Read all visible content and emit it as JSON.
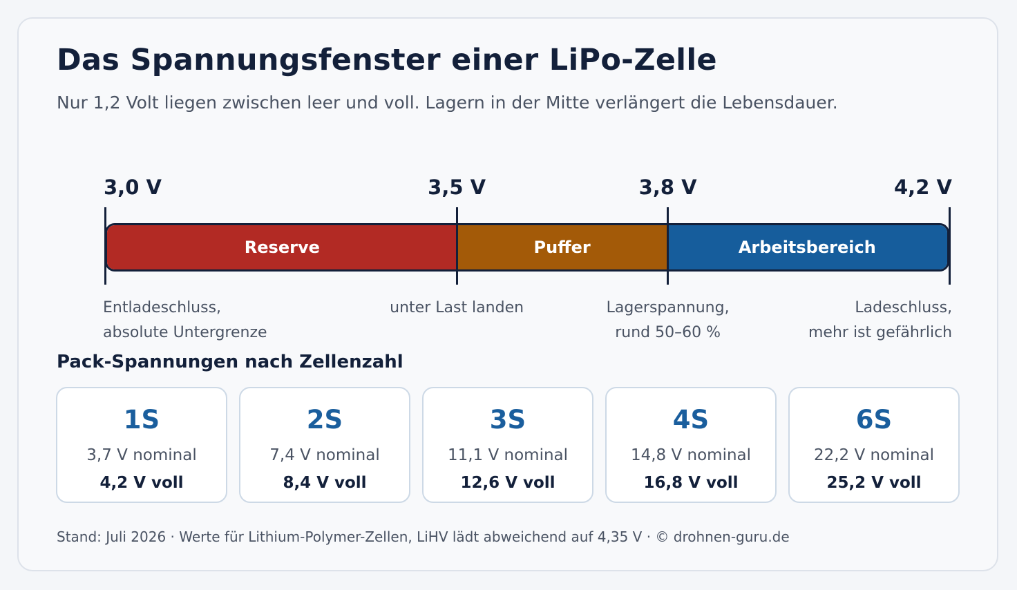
{
  "header": {
    "title": "Das Spannungsfenster einer LiPo-Zelle",
    "subtitle": "Nur 1,2 Volt liegen zwischen leer und voll. Lagern in der Mitte verlängert die Lebensdauer."
  },
  "scale": {
    "markers": [
      {
        "value": 3.0,
        "label": "3,0 V"
      },
      {
        "value": 3.5,
        "label": "3,5 V"
      },
      {
        "value": 3.8,
        "label": "3,8 V"
      },
      {
        "value": 4.2,
        "label": "4,2 V"
      }
    ],
    "segments": [
      {
        "label": "Reserve",
        "from": 3.0,
        "to": 3.5,
        "color": "#b22a24"
      },
      {
        "label": "Puffer",
        "from": 3.5,
        "to": 3.8,
        "color": "#a35a08"
      },
      {
        "label": "Arbeitsbereich",
        "from": 3.8,
        "to": 4.2,
        "color": "#165d9c"
      }
    ],
    "descriptions": [
      {
        "line1": "Entladeschluss,",
        "line2": "absolute Untergrenze"
      },
      {
        "line1": "unter Last landen",
        "line2": ""
      },
      {
        "line1": "Lagerspannung,",
        "line2": "rund 50–60 %"
      },
      {
        "line1": "Ladeschluss,",
        "line2": "mehr ist gefährlich"
      }
    ]
  },
  "packs": {
    "title": "Pack-Spannungen nach Zellenzahl",
    "items": [
      {
        "name": "1S",
        "nominal": "3,7 V nominal",
        "full": "4,2 V voll"
      },
      {
        "name": "2S",
        "nominal": "7,4 V nominal",
        "full": "8,4 V voll"
      },
      {
        "name": "3S",
        "nominal": "11,1 V nominal",
        "full": "12,6 V voll"
      },
      {
        "name": "4S",
        "nominal": "14,8 V nominal",
        "full": "16,8 V voll"
      },
      {
        "name": "6S",
        "nominal": "22,2 V nominal",
        "full": "25,2 V voll"
      }
    ]
  },
  "footer": "Stand: Juli 2026 · Werte für Lithium-Polymer-Zellen, LiHV lädt abweichend auf 4,35 V · © drohnen-guru.de"
}
